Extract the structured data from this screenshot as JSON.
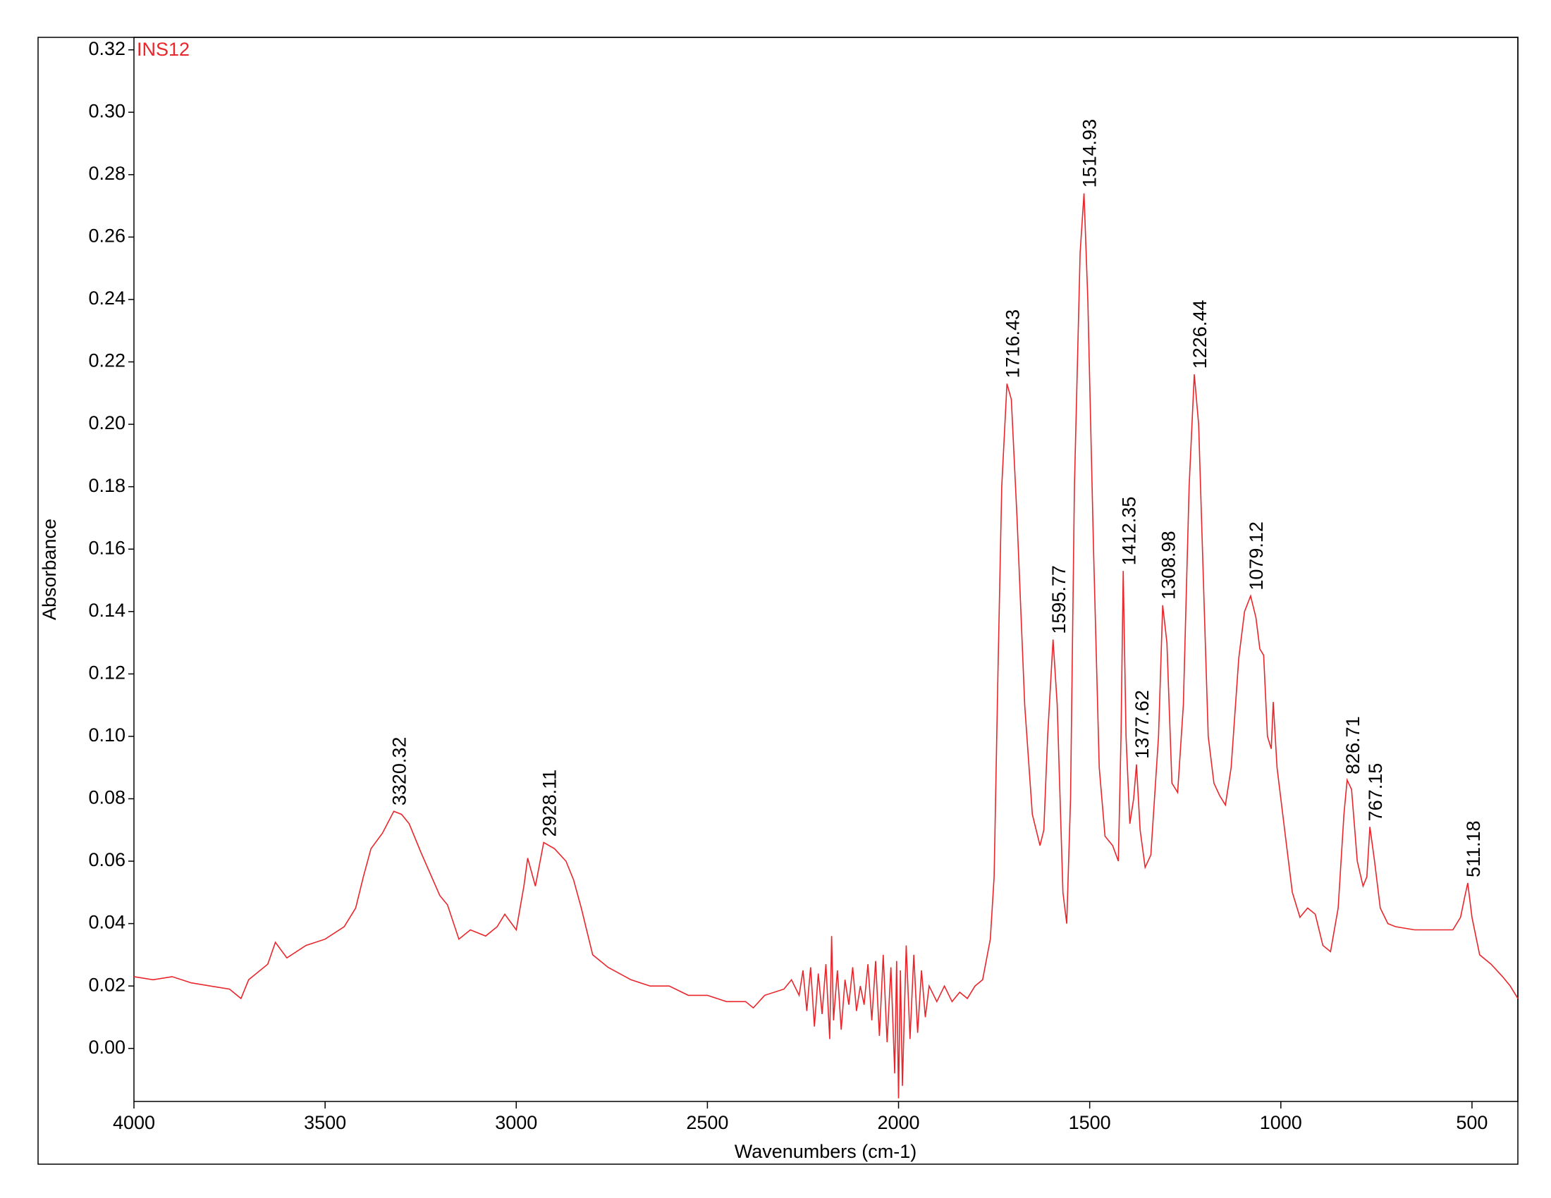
{
  "chart_data": {
    "type": "line",
    "xlabel": "Wavenumbers (cm-1)",
    "ylabel": "Absorbance",
    "xlim": [
      4000,
      380
    ],
    "ylim": [
      -0.017,
      0.324
    ],
    "xticks": [
      4000,
      3500,
      3000,
      2500,
      2000,
      1500,
      1000,
      500
    ],
    "yticks": [
      {
        "value": 0,
        "label": "0.00"
      },
      {
        "value": 0.02,
        "label": "0.02"
      },
      {
        "value": 0.04,
        "label": "0.04"
      },
      {
        "value": 0.06,
        "label": "0.06"
      },
      {
        "value": 0.08,
        "label": "0.08"
      },
      {
        "value": 0.1,
        "label": "0.10"
      },
      {
        "value": 0.12,
        "label": "0.12"
      },
      {
        "value": 0.14,
        "label": "0.14"
      },
      {
        "value": 0.16,
        "label": "0.16"
      },
      {
        "value": 0.18,
        "label": "0.18"
      },
      {
        "value": 0.2,
        "label": "0.20"
      },
      {
        "value": 0.22,
        "label": "0.22"
      },
      {
        "value": 0.24,
        "label": "0.24"
      },
      {
        "value": 0.26,
        "label": "0.26"
      },
      {
        "value": 0.28,
        "label": "0.28"
      },
      {
        "value": 0.3,
        "label": "0.30"
      },
      {
        "value": 0.32,
        "label": "0.32"
      }
    ],
    "x": [
      4000,
      3950,
      3900,
      3850,
      3800,
      3750,
      3720,
      3700,
      3650,
      3630,
      3600,
      3550,
      3500,
      3450,
      3420,
      3400,
      3380,
      3350,
      3320.32,
      3300,
      3280,
      3250,
      3200,
      3180,
      3150,
      3120,
      3100,
      3080,
      3050,
      3030,
      3000,
      2980,
      2970,
      2950,
      2928.11,
      2900,
      2870,
      2850,
      2830,
      2800,
      2760,
      2700,
      2650,
      2600,
      2550,
      2500,
      2450,
      2400,
      2380,
      2350,
      2300,
      2280,
      2260,
      2250,
      2240,
      2230,
      2220,
      2210,
      2200,
      2190,
      2180,
      2175,
      2170,
      2160,
      2150,
      2140,
      2130,
      2120,
      2110,
      2100,
      2090,
      2080,
      2070,
      2060,
      2050,
      2040,
      2030,
      2020,
      2010,
      2005,
      2000,
      1995,
      1990,
      1980,
      1970,
      1960,
      1950,
      1940,
      1930,
      1920,
      1900,
      1880,
      1860,
      1840,
      1820,
      1800,
      1780,
      1760,
      1750,
      1740,
      1730,
      1716.43,
      1705,
      1690,
      1670,
      1650,
      1630,
      1620,
      1610,
      1595.77,
      1585,
      1570,
      1560,
      1550,
      1540,
      1525,
      1514.93,
      1505,
      1490,
      1475,
      1460,
      1440,
      1425,
      1418,
      1412.35,
      1405,
      1395,
      1385,
      1377.62,
      1368,
      1355,
      1340,
      1320,
      1308.98,
      1298,
      1285,
      1270,
      1255,
      1240,
      1226.44,
      1215,
      1200,
      1190,
      1175,
      1160,
      1145,
      1130,
      1110,
      1095,
      1079.12,
      1065,
      1055,
      1045,
      1035,
      1025,
      1020,
      1010,
      990,
      970,
      950,
      930,
      910,
      890,
      870,
      850,
      835,
      826.71,
      815,
      800,
      785,
      775,
      767.15,
      755,
      740,
      720,
      700,
      650,
      600,
      550,
      530,
      520,
      511.18,
      500,
      480,
      450,
      420,
      400,
      380
    ],
    "series": [
      {
        "name": "INS12",
        "color": "#e8262b",
        "values": [
          0.023,
          0.022,
          0.023,
          0.021,
          0.02,
          0.019,
          0.016,
          0.022,
          0.027,
          0.034,
          0.029,
          0.033,
          0.035,
          0.039,
          0.045,
          0.055,
          0.064,
          0.069,
          0.076,
          0.075,
          0.072,
          0.063,
          0.049,
          0.046,
          0.035,
          0.038,
          0.037,
          0.036,
          0.039,
          0.043,
          0.038,
          0.052,
          0.061,
          0.052,
          0.066,
          0.064,
          0.06,
          0.054,
          0.045,
          0.03,
          0.026,
          0.022,
          0.02,
          0.02,
          0.017,
          0.017,
          0.015,
          0.015,
          0.013,
          0.017,
          0.019,
          0.022,
          0.017,
          0.025,
          0.012,
          0.026,
          0.007,
          0.024,
          0.011,
          0.027,
          0.003,
          0.036,
          0.009,
          0.025,
          0.006,
          0.022,
          0.014,
          0.026,
          0.012,
          0.02,
          0.014,
          0.027,
          0.009,
          0.028,
          0.004,
          0.03,
          0.002,
          0.026,
          -0.008,
          0.028,
          -0.016,
          0.025,
          -0.012,
          0.033,
          0.003,
          0.03,
          0.005,
          0.025,
          0.01,
          0.02,
          0.015,
          0.02,
          0.015,
          0.018,
          0.016,
          0.02,
          0.022,
          0.035,
          0.055,
          0.12,
          0.18,
          0.213,
          0.208,
          0.17,
          0.11,
          0.075,
          0.065,
          0.07,
          0.1,
          0.131,
          0.11,
          0.05,
          0.04,
          0.08,
          0.18,
          0.255,
          0.274,
          0.24,
          0.16,
          0.09,
          0.068,
          0.065,
          0.06,
          0.1,
          0.153,
          0.1,
          0.072,
          0.08,
          0.091,
          0.07,
          0.058,
          0.062,
          0.1,
          0.142,
          0.13,
          0.085,
          0.082,
          0.11,
          0.18,
          0.216,
          0.2,
          0.14,
          0.1,
          0.085,
          0.081,
          0.078,
          0.09,
          0.125,
          0.14,
          0.145,
          0.138,
          0.128,
          0.126,
          0.1,
          0.096,
          0.111,
          0.09,
          0.07,
          0.05,
          0.042,
          0.045,
          0.043,
          0.033,
          0.031,
          0.045,
          0.075,
          0.086,
          0.083,
          0.06,
          0.052,
          0.055,
          0.071,
          0.06,
          0.045,
          0.04,
          0.039,
          0.038,
          0.038,
          0.038,
          0.042,
          0.048,
          0.053,
          0.042,
          0.03,
          0.027,
          0.023,
          0.02,
          0.016
        ]
      }
    ],
    "annotations": [
      {
        "x": 3320.32,
        "y": 0.076
      },
      {
        "x": 2928.11,
        "y": 0.066
      },
      {
        "x": 1716.43,
        "y": 0.213
      },
      {
        "x": 1595.77,
        "y": 0.131
      },
      {
        "x": 1514.93,
        "y": 0.274
      },
      {
        "x": 1412.35,
        "y": 0.153
      },
      {
        "x": 1377.62,
        "y": 0.091
      },
      {
        "x": 1308.98,
        "y": 0.142
      },
      {
        "x": 1226.44,
        "y": 0.216
      },
      {
        "x": 1079.12,
        "y": 0.145
      },
      {
        "x": 826.71,
        "y": 0.086
      },
      {
        "x": 767.15,
        "y": 0.071
      },
      {
        "x": 511.18,
        "y": 0.053
      }
    ]
  }
}
